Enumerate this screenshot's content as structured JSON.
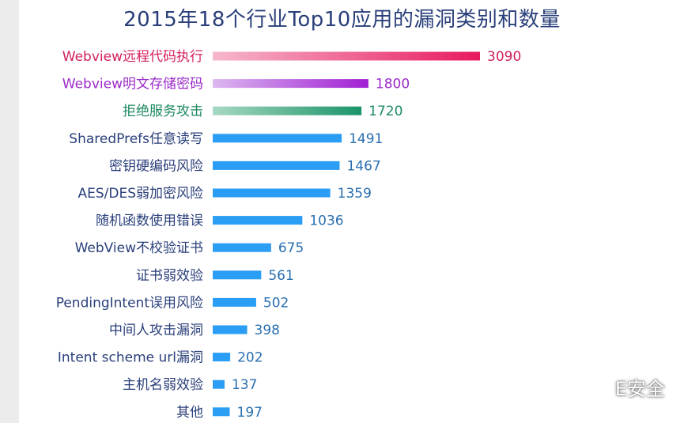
{
  "chart_data": {
    "type": "bar",
    "orientation": "horizontal",
    "title": "2015年18个行业Top10应用的漏洞类别和数量",
    "categories": [
      "Webview远程代码执行",
      "Webview明文存储密码",
      "拒绝服务攻击",
      "SharedPrefs任意读写",
      "密钥硬编码风险",
      "AES/DES弱加密风险",
      "随机函数使用错误",
      "WebView不校验证书",
      "证书弱效验",
      "PendingIntent误用风险",
      "中间人攻击漏洞",
      "Intent scheme url漏洞",
      "主机名弱效验",
      "其他"
    ],
    "values": [
      3090,
      1800,
      1720,
      1491,
      1467,
      1359,
      1036,
      675,
      561,
      502,
      398,
      202,
      137,
      197
    ],
    "colors": {
      "highlight": [
        {
          "start": "#f6b8cb",
          "end": "#e8195f",
          "text": "#d4215e"
        },
        {
          "start": "#dcb8f0",
          "end": "#a01ed3",
          "text": "#9b2bc9"
        },
        {
          "start": "#a7d8c3",
          "end": "#1a9468",
          "text": "#1d8a5f"
        }
      ],
      "default_bar": "#2a9df4",
      "label": "#2a3f7a",
      "value": "#2a6fb0"
    },
    "grid": false,
    "legend": "none"
  },
  "watermark": {
    "text": "E安全",
    "icon": "wechat-icon"
  }
}
